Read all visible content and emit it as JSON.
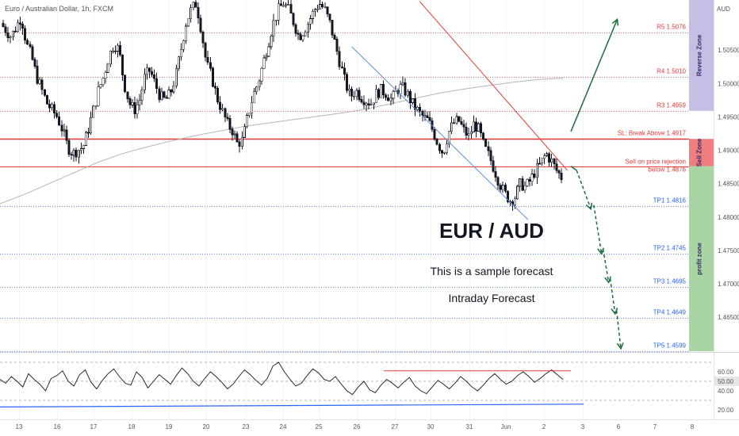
{
  "chart_data": {
    "type": "candlestick",
    "symbol_label": "Euro / Australian Dollar, 1h, FXCM",
    "currency_label": "AUD",
    "title": "EUR / AUD",
    "subtitle": "This is a sample forecast",
    "subtitle2": "Intraday Forecast",
    "price_axis": {
      "min": 1.4598,
      "max": 1.5125,
      "ticks": [
        "1.50500",
        "1.50000",
        "1.49500",
        "1.49000",
        "1.48500",
        "1.48000",
        "1.47500",
        "1.47000",
        "1.46500"
      ]
    },
    "time_axis": {
      "labels": [
        "13",
        "16",
        "17",
        "18",
        "19",
        "20",
        "23",
        "24",
        "25",
        "26",
        "27",
        "30",
        "31",
        "Jun",
        "2",
        "3",
        "6",
        "7",
        "8"
      ]
    },
    "levels": [
      {
        "name": "R5",
        "label": "R5 1.5076",
        "price": 1.5076,
        "color": "#e53935",
        "style": "dotted"
      },
      {
        "name": "R4",
        "label": "R4 1.5010",
        "price": 1.501,
        "color": "#e53935",
        "style": "dotted"
      },
      {
        "name": "R3",
        "label": "R3 1.4959",
        "price": 1.4959,
        "color": "#e53935",
        "style": "dotted"
      },
      {
        "name": "SL",
        "label": "SL: Break Above 1.4917",
        "price": 1.4917,
        "color": "#e53935",
        "style": "solid"
      },
      {
        "name": "SELL",
        "label": "Sell on price rejection",
        "label2": "below 1.4876",
        "price": 1.4876,
        "color": "#e53935",
        "style": "solid"
      },
      {
        "name": "TP1",
        "label": "TP1 1.4816",
        "price": 1.4816,
        "color": "#2962ff",
        "style": "dotted"
      },
      {
        "name": "TP2",
        "label": "TP2 1.4745",
        "price": 1.4745,
        "color": "#2962ff",
        "style": "dotted"
      },
      {
        "name": "TP3",
        "label": "TP3 1.4695",
        "price": 1.4695,
        "color": "#2962ff",
        "style": "dotted"
      },
      {
        "name": "TP4",
        "label": "TP4 1.4649",
        "price": 1.4649,
        "color": "#2962ff",
        "style": "dotted"
      },
      {
        "name": "TP5",
        "label": "TP5 1.4599",
        "price": 1.4599,
        "color": "#2962ff",
        "style": "dotted"
      }
    ],
    "zones": [
      {
        "name": "reverse",
        "label": "Reverse Zone",
        "from": 1.4959,
        "to": 1.5125,
        "color": "#c5bfe6"
      },
      {
        "name": "sell",
        "label": "Sell Zone",
        "from": 1.4876,
        "to": 1.4917,
        "color": "#ef7f7f"
      },
      {
        "name": "profit",
        "label": "profit zone",
        "from": 1.4599,
        "to": 1.4876,
        "color": "#a9d4a3"
      }
    ],
    "close_path": [
      1.509,
      1.508,
      1.507,
      1.5085,
      1.51,
      1.506,
      1.504,
      1.501,
      1.499,
      1.497,
      1.496,
      1.495,
      1.493,
      1.4905,
      1.4895,
      1.49,
      1.4905,
      1.493,
      1.496,
      1.499,
      1.501,
      1.504,
      1.506,
      1.505,
      1.5,
      1.497,
      1.496,
      1.4975,
      1.501,
      1.502,
      1.5,
      1.498,
      1.4975,
      1.4985,
      1.501,
      1.505,
      1.509,
      1.511,
      1.512,
      1.508,
      1.503,
      1.501,
      1.498,
      1.496,
      1.494,
      1.493,
      1.491,
      1.4915,
      1.495,
      1.498,
      1.5,
      1.503,
      1.506,
      1.509,
      1.511,
      1.512,
      1.511,
      1.509,
      1.507,
      1.508,
      1.5095,
      1.511,
      1.512,
      1.511,
      1.509,
      1.506,
      1.503,
      1.5,
      1.498,
      1.499,
      1.498,
      1.4975,
      1.497,
      1.4985,
      1.499,
      1.4985,
      1.4975,
      1.499,
      1.4995,
      1.4985,
      1.497,
      1.496,
      1.495,
      1.4945,
      1.493,
      1.491,
      1.4895,
      1.4925,
      1.494,
      1.4945,
      1.493,
      1.492,
      1.494,
      1.493,
      1.4905,
      1.489,
      1.487,
      1.485,
      1.4835,
      1.4825,
      1.483,
      1.485,
      1.4845,
      1.4855,
      1.487,
      1.488,
      1.4895,
      1.4885,
      1.487,
      1.486
    ],
    "ma_path": [
      1.482,
      1.4834,
      1.485,
      1.4866,
      1.4882,
      1.4895,
      1.4905,
      1.4914,
      1.4922,
      1.4929,
      1.4936,
      1.4941,
      1.4946,
      1.4951,
      1.4956,
      1.4962,
      1.497,
      1.4978,
      1.4986,
      1.4992,
      1.4997,
      1.5002,
      1.5006,
      1.5008
    ],
    "trendlines": [
      {
        "name": "support",
        "color": "#5b8fd6",
        "from": [
          0.493,
          1.5055
        ],
        "to": [
          0.74,
          1.4796
        ]
      },
      {
        "name": "resistance",
        "color": "#e53935",
        "from": [
          0.588,
          1.5123
        ],
        "to": [
          0.795,
          1.487
        ]
      }
    ],
    "forecast_arrows": [
      {
        "name": "bullish",
        "from": [
          0.8,
          1.4928
        ],
        "to": [
          0.865,
          1.5096
        ]
      },
      {
        "name": "bearish",
        "points": [
          [
            0.808,
            1.487
          ],
          [
            0.828,
            1.4806
          ],
          [
            0.828,
            1.4806
          ],
          [
            0.843,
            1.474
          ],
          [
            0.843,
            1.474
          ],
          [
            0.853,
            1.4699
          ],
          [
            0.853,
            1.4699
          ],
          [
            0.862,
            1.4651
          ],
          [
            0.862,
            1.4651
          ],
          [
            0.87,
            1.4599
          ]
        ]
      }
    ],
    "rsi": {
      "ticks": [
        "60.00",
        "50.00",
        "40.00",
        "20.00"
      ],
      "current_label": "50.00",
      "min": 10,
      "max": 80,
      "levels": [
        70,
        50,
        30
      ],
      "values": [
        52,
        48,
        55,
        50,
        44,
        58,
        52,
        47,
        40,
        53,
        56,
        61,
        50,
        45,
        57,
        62,
        49,
        42,
        51,
        58,
        63,
        55,
        48,
        46,
        60,
        54,
        43,
        50,
        57,
        52,
        47,
        56,
        64,
        58,
        50,
        45,
        53,
        60,
        55,
        49,
        42,
        47,
        55,
        62,
        57,
        51,
        46,
        53,
        66,
        70,
        60,
        52,
        45,
        48,
        56,
        63,
        59,
        52,
        50,
        55,
        47,
        40,
        36,
        44,
        50,
        41,
        38,
        46,
        52,
        48,
        43,
        49,
        54,
        45,
        40,
        37,
        44,
        51,
        47,
        42,
        48,
        55,
        50,
        44,
        40,
        46,
        53,
        58,
        52,
        47,
        50,
        56,
        60,
        55,
        49,
        53,
        58,
        62,
        57,
        52
      ]
    },
    "rsi_overlays": {
      "red_line": {
        "from": [
          0.538,
          61
        ],
        "to": [
          0.8,
          61
        ],
        "color": "#e53935"
      },
      "blue_line": {
        "from": [
          0.0,
          23
        ],
        "to": [
          0.818,
          26
        ],
        "color": "#2962ff"
      }
    }
  }
}
